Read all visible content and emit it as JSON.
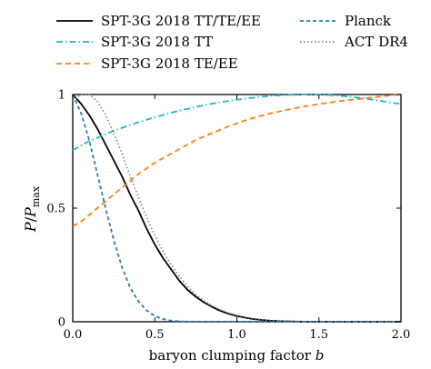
{
  "chart_data": {
    "type": "line",
    "xlabel": "baryon clumping factor b",
    "ylabel": "P/P_max",
    "xlim": [
      0.0,
      2.0
    ],
    "ylim": [
      0.0,
      1.0
    ],
    "xticks": [
      "0.0",
      "0.5",
      "1.0",
      "1.5",
      "2.0"
    ],
    "yticks": [
      "0",
      "0.5",
      "1"
    ],
    "grid": false,
    "legend_placement": "top, above axes, two columns",
    "x": [
      0.0,
      0.05,
      0.1,
      0.15,
      0.2,
      0.25,
      0.3,
      0.35,
      0.4,
      0.45,
      0.5,
      0.55,
      0.6,
      0.65,
      0.7,
      0.75,
      0.8,
      0.85,
      0.9,
      0.95,
      1.0,
      1.05,
      1.1,
      1.15,
      1.2,
      1.25,
      1.3,
      1.35,
      1.4,
      1.45,
      1.5,
      1.55,
      1.6,
      1.65,
      1.7,
      1.75,
      1.8,
      1.85,
      1.9,
      1.95,
      2.0
    ],
    "series": [
      {
        "name": "SPT-3G 2018 TT/TE/EE",
        "color": "#000000",
        "style": "solid",
        "values": [
          1.0,
          0.96,
          0.91,
          0.85,
          0.78,
          0.71,
          0.64,
          0.56,
          0.49,
          0.41,
          0.34,
          0.28,
          0.23,
          0.18,
          0.14,
          0.11,
          0.085,
          0.065,
          0.048,
          0.035,
          0.025,
          0.018,
          0.012,
          0.008,
          0.005,
          0.003,
          0.002,
          0.001,
          0.0005,
          0.0,
          0.0,
          0.0,
          0.0,
          0.0,
          0.0,
          0.0,
          0.0,
          0.0,
          0.0,
          0.0,
          0.0
        ]
      },
      {
        "name": "SPT-3G 2018 TT",
        "color": "#1fb8c8",
        "style": "dashdot",
        "values": [
          0.755,
          0.775,
          0.795,
          0.81,
          0.825,
          0.84,
          0.853,
          0.866,
          0.878,
          0.889,
          0.9,
          0.91,
          0.92,
          0.929,
          0.937,
          0.945,
          0.953,
          0.96,
          0.966,
          0.972,
          0.977,
          0.982,
          0.986,
          0.99,
          0.993,
          0.996,
          0.998,
          0.999,
          1.0,
          1.0,
          0.999,
          0.998,
          0.996,
          0.993,
          0.989,
          0.985,
          0.98,
          0.975,
          0.969,
          0.963,
          0.958
        ]
      },
      {
        "name": "SPT-3G 2018 TE/EE",
        "color": "#ff7f0e",
        "style": "dashed",
        "values": [
          0.42,
          0.44,
          0.47,
          0.5,
          0.53,
          0.56,
          0.59,
          0.62,
          0.65,
          0.675,
          0.7,
          0.72,
          0.74,
          0.76,
          0.78,
          0.8,
          0.815,
          0.83,
          0.845,
          0.86,
          0.873,
          0.886,
          0.897,
          0.907,
          0.916,
          0.924,
          0.932,
          0.939,
          0.946,
          0.952,
          0.958,
          0.963,
          0.968,
          0.973,
          0.977,
          0.981,
          0.985,
          0.989,
          0.993,
          0.997,
          1.0
        ]
      },
      {
        "name": "Planck",
        "color": "#2a7ab8",
        "style": "dashed",
        "values": [
          1.0,
          0.92,
          0.8,
          0.65,
          0.5,
          0.36,
          0.24,
          0.15,
          0.09,
          0.05,
          0.025,
          0.012,
          0.005,
          0.002,
          0.0005,
          0.0,
          0.0,
          0.0,
          0.0,
          0.0,
          0.0,
          0.0,
          0.0,
          0.0,
          0.0,
          0.0,
          0.0,
          0.0,
          0.0,
          0.0,
          0.0,
          0.0,
          0.0,
          0.0,
          0.0,
          0.0,
          0.0,
          0.0,
          0.0,
          0.0,
          0.0
        ]
      },
      {
        "name": "ACT DR4",
        "color": "#808080",
        "style": "dotted",
        "values": [
          0.97,
          1.0,
          1.0,
          0.97,
          0.91,
          0.83,
          0.74,
          0.64,
          0.55,
          0.46,
          0.38,
          0.31,
          0.25,
          0.2,
          0.155,
          0.12,
          0.092,
          0.07,
          0.052,
          0.038,
          0.028,
          0.02,
          0.014,
          0.009,
          0.006,
          0.004,
          0.002,
          0.001,
          0.0005,
          0.0,
          0.0,
          0.0,
          0.0,
          0.0,
          0.0,
          0.0,
          0.0,
          0.0,
          0.0,
          0.0,
          0.0
        ]
      }
    ]
  }
}
